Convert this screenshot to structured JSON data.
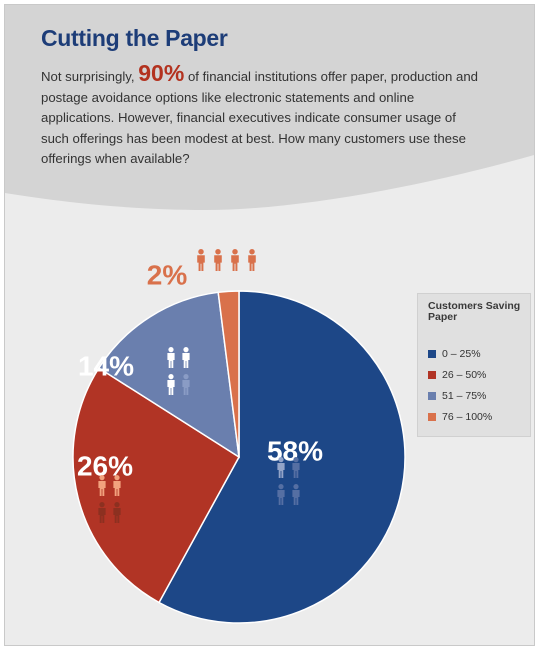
{
  "header": {
    "title": "Cutting the Paper",
    "intro_before": "Not surprisingly, ",
    "intro_highlight": "90%",
    "intro_after": " of financial institutions offer paper, production and postage avoidance options like electronic statements and online applications. However, financial executives indicate consumer usage of such offerings has been modest at best. How many customers use these offerings when available?"
  },
  "icon_names": [
    "person-icon"
  ],
  "chart_data": {
    "type": "pie",
    "title": "",
    "legend_title": "Customers Saving Paper",
    "legend_position": "right",
    "categories": [
      "0 – 25%",
      "26 – 50%",
      "51 – 75%",
      "76 – 100%"
    ],
    "values": [
      58,
      26,
      14,
      2
    ],
    "labels": [
      "58%",
      "26%",
      "14%",
      "2%"
    ],
    "colors": [
      "#1d4787",
      "#b13425",
      "#6a7fae",
      "#d9714b"
    ],
    "icons_per_slice": [
      4,
      4,
      4,
      4
    ],
    "icons_filled_per_slice": [
      1,
      2,
      3,
      4
    ]
  }
}
